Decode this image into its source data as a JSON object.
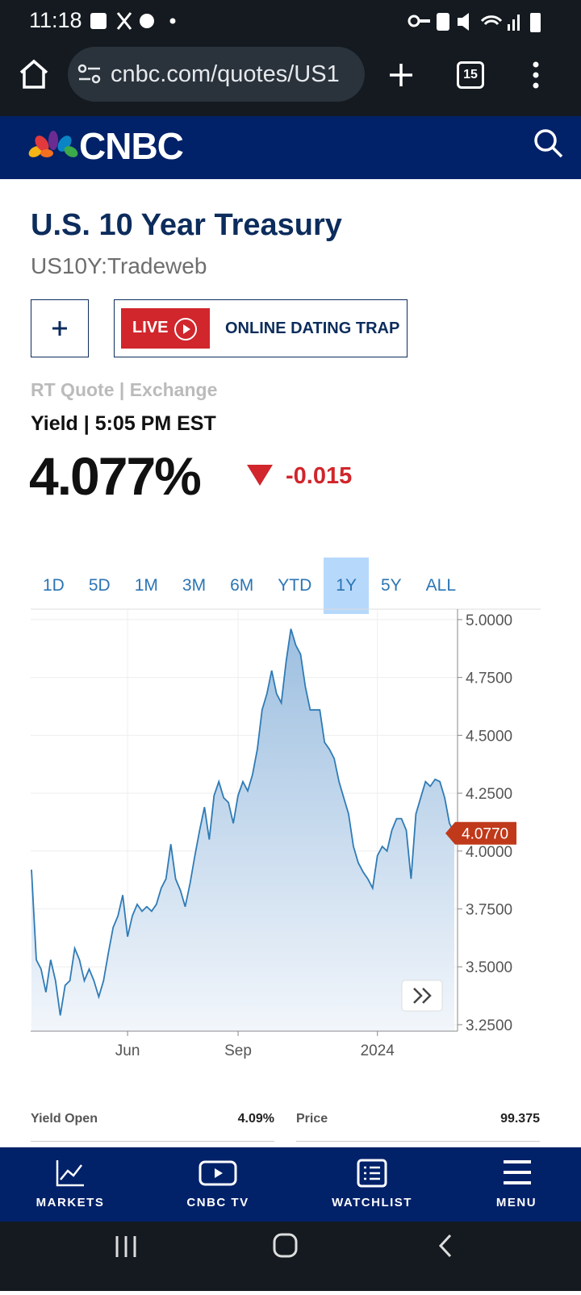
{
  "status_bar": {
    "time": "11:18"
  },
  "browser": {
    "url": "cnbc.com/quotes/US1",
    "tab_count": "15"
  },
  "header": {
    "brand": "CNBC"
  },
  "quote": {
    "title": "U.S. 10 Year Treasury",
    "symbol": "US10Y:Tradeweb",
    "live_badge": "LIVE",
    "live_show": "ONLINE DATING TRAP",
    "source": "RT Quote | Exchange",
    "timestamp": "Yield | 5:05 PM EST",
    "last": "4.077%",
    "change": "-0.015"
  },
  "range_buttons": [
    "1D",
    "5D",
    "1M",
    "3M",
    "6M",
    "YTD",
    "1Y",
    "5Y",
    "ALL"
  ],
  "selected_range": 6,
  "chart_data": {
    "type": "line",
    "color": "#2f7bb5",
    "categories": [
      null,
      null,
      null,
      null,
      null,
      null,
      null,
      null,
      null,
      null,
      null,
      null,
      null,
      null,
      null,
      null,
      null,
      null,
      null,
      null,
      "Jun",
      null,
      null,
      null,
      null,
      null,
      null,
      null,
      null,
      null,
      null,
      null,
      null,
      null,
      null,
      null,
      null,
      null,
      null,
      null,
      null,
      null,
      null,
      "Sep",
      null,
      null,
      null,
      null,
      null,
      null,
      null,
      null,
      null,
      null,
      null,
      null,
      null,
      null,
      null,
      null,
      null,
      null,
      null,
      null,
      null,
      null,
      null,
      null,
      null,
      null,
      null,
      null,
      "2024",
      null,
      null,
      null,
      null,
      null,
      null,
      null,
      null,
      null,
      null,
      null,
      null,
      null,
      null,
      null,
      null
    ],
    "values": [
      3.92,
      3.53,
      3.49,
      3.39,
      3.53,
      3.44,
      3.29,
      3.42,
      3.44,
      3.58,
      3.53,
      3.44,
      3.49,
      3.44,
      3.37,
      3.44,
      3.56,
      3.67,
      3.72,
      3.81,
      3.63,
      3.72,
      3.77,
      3.74,
      3.76,
      3.74,
      3.77,
      3.84,
      3.88,
      4.03,
      3.88,
      3.83,
      3.76,
      3.86,
      3.98,
      4.09,
      4.19,
      4.05,
      4.24,
      4.3,
      4.23,
      4.21,
      4.12,
      4.24,
      4.3,
      4.26,
      4.33,
      4.44,
      4.61,
      4.68,
      4.78,
      4.68,
      4.64,
      4.82,
      4.96,
      4.89,
      4.85,
      4.71,
      4.61,
      4.61,
      4.61,
      4.47,
      4.44,
      4.4,
      4.3,
      4.23,
      4.16,
      4.02,
      3.95,
      3.91,
      3.88,
      3.84,
      3.98,
      4.02,
      4.0,
      4.09,
      4.14,
      4.14,
      4.09,
      3.88,
      4.16,
      4.23,
      4.3,
      4.28,
      4.31,
      4.3,
      4.23,
      4.12,
      4.077
    ],
    "ylim": [
      3.222,
      5.045
    ],
    "yticks": [
      {
        "value": 3.25,
        "label": "3.2500"
      },
      {
        "value": 3.5,
        "label": "3.5000"
      },
      {
        "value": 3.75,
        "label": "3.7500"
      },
      {
        "value": 4,
        "label": "4.0000"
      },
      {
        "value": 4.25,
        "label": "4.2500"
      },
      {
        "value": 4.5,
        "label": "4.5000"
      },
      {
        "value": 4.75,
        "label": "4.7500"
      },
      {
        "value": 5,
        "label": "5.0000"
      }
    ],
    "last_price": {
      "value": 4.077,
      "label": "4.0770"
    },
    "grid": true
  },
  "stats": [
    {
      "label": "Yield Open",
      "value": "4.09%"
    },
    {
      "label": "Price",
      "value": "99.375"
    }
  ],
  "bottom_nav": [
    "MARKETS",
    "CNBC TV",
    "WATCHLIST",
    "MENU"
  ]
}
